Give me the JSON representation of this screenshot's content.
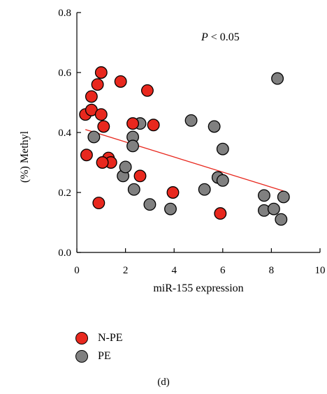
{
  "chart_data": {
    "type": "scatter",
    "xlabel": "miR-155 expression",
    "ylabel": "(%) Methyl",
    "xlim": [
      0,
      10
    ],
    "ylim": [
      0,
      0.8
    ],
    "xticks": [
      "0",
      "2",
      "4",
      "6",
      "8",
      "10"
    ],
    "yticks": [
      "0.0",
      "0.2",
      "0.4",
      "0.6",
      "0.8"
    ],
    "annotation": "P < 0.05",
    "panel_label": "(d)",
    "legend_position": "bottom-left",
    "series": [
      {
        "name": "N-PE",
        "color": "#e8281e",
        "points": [
          [
            0.35,
            0.46
          ],
          [
            0.4,
            0.325
          ],
          [
            0.6,
            0.52
          ],
          [
            0.6,
            0.475
          ],
          [
            0.85,
            0.56
          ],
          [
            1.0,
            0.6
          ],
          [
            1.0,
            0.46
          ],
          [
            1.1,
            0.42
          ],
          [
            1.3,
            0.315
          ],
          [
            1.4,
            0.3
          ],
          [
            1.05,
            0.3
          ],
          [
            0.9,
            0.165
          ],
          [
            1.8,
            0.57
          ],
          [
            2.3,
            0.43
          ],
          [
            2.6,
            0.255
          ],
          [
            2.9,
            0.54
          ],
          [
            3.15,
            0.425
          ],
          [
            3.95,
            0.2
          ],
          [
            5.9,
            0.13
          ]
        ]
      },
      {
        "name": "PE",
        "color": "#808080",
        "points": [
          [
            0.7,
            0.385
          ],
          [
            1.9,
            0.255
          ],
          [
            2.0,
            0.285
          ],
          [
            2.3,
            0.385
          ],
          [
            2.3,
            0.355
          ],
          [
            2.35,
            0.21
          ],
          [
            2.6,
            0.43
          ],
          [
            3.0,
            0.16
          ],
          [
            3.85,
            0.145
          ],
          [
            4.7,
            0.44
          ],
          [
            5.25,
            0.21
          ],
          [
            5.65,
            0.42
          ],
          [
            5.8,
            0.25
          ],
          [
            6.0,
            0.24
          ],
          [
            6.0,
            0.345
          ],
          [
            7.7,
            0.19
          ],
          [
            7.7,
            0.14
          ],
          [
            8.1,
            0.145
          ],
          [
            8.25,
            0.58
          ],
          [
            8.4,
            0.11
          ],
          [
            8.5,
            0.185
          ]
        ]
      }
    ],
    "trendline": {
      "color": "#e8281e",
      "x": [
        0.35,
        8.5
      ],
      "y": [
        0.41,
        0.205
      ]
    }
  }
}
